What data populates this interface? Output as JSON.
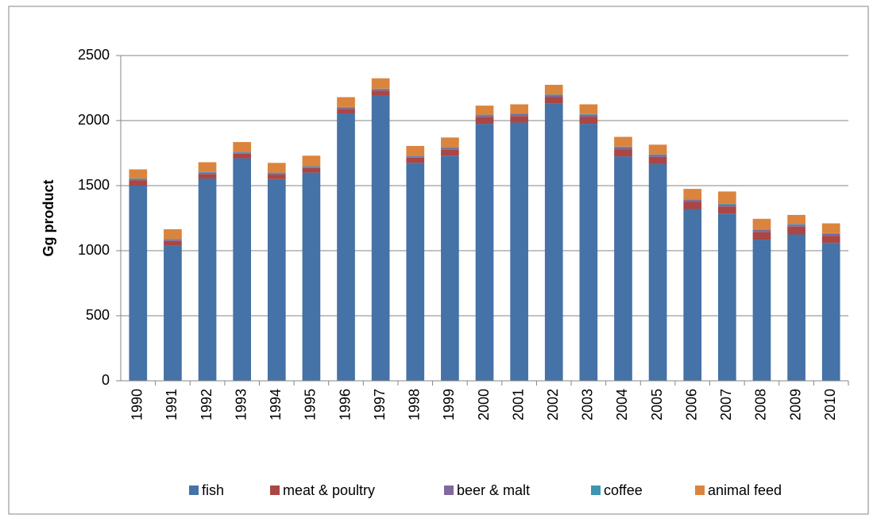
{
  "chart_data": {
    "type": "stacked_bar",
    "y_label": "Gg product",
    "categories": [
      "1990",
      "1991",
      "1992",
      "1993",
      "1994",
      "1995",
      "1996",
      "1997",
      "1998",
      "1999",
      "2000",
      "2001",
      "2002",
      "2003",
      "2004",
      "2005",
      "2006",
      "2007",
      "2008",
      "2009",
      "2010"
    ],
    "series": [
      {
        "name": "fish",
        "color": "#4572a7",
        "values": [
          1500,
          1040,
          1555,
          1710,
          1550,
          1600,
          2055,
          2195,
          1675,
          1730,
          1975,
          1985,
          2130,
          1975,
          1725,
          1665,
          1320,
          1285,
          1085,
          1125,
          1060
        ]
      },
      {
        "name": "meat & poultry",
        "color": "#aa4643",
        "values": [
          40,
          35,
          35,
          35,
          35,
          35,
          35,
          35,
          40,
          45,
          50,
          50,
          50,
          55,
          55,
          55,
          55,
          55,
          60,
          60,
          55
        ]
      },
      {
        "name": "beer & malt",
        "color": "#80699b",
        "values": [
          10,
          10,
          10,
          10,
          10,
          10,
          10,
          10,
          10,
          15,
          15,
          15,
          15,
          15,
          15,
          15,
          15,
          15,
          15,
          15,
          15
        ]
      },
      {
        "name": "coffee",
        "color": "#3d96ae",
        "values": [
          5,
          5,
          5,
          5,
          5,
          5,
          5,
          5,
          5,
          5,
          5,
          5,
          5,
          5,
          5,
          5,
          5,
          5,
          5,
          5,
          5
        ]
      },
      {
        "name": "animal feed",
        "color": "#db843d",
        "values": [
          70,
          75,
          75,
          75,
          75,
          80,
          75,
          80,
          75,
          75,
          70,
          70,
          75,
          75,
          75,
          75,
          80,
          95,
          80,
          70,
          75
        ]
      }
    ],
    "ylim": [
      0,
      2500
    ],
    "yticks": [
      0,
      500,
      1000,
      1500,
      2000,
      2500
    ],
    "grid": true,
    "legend": "bottom"
  }
}
